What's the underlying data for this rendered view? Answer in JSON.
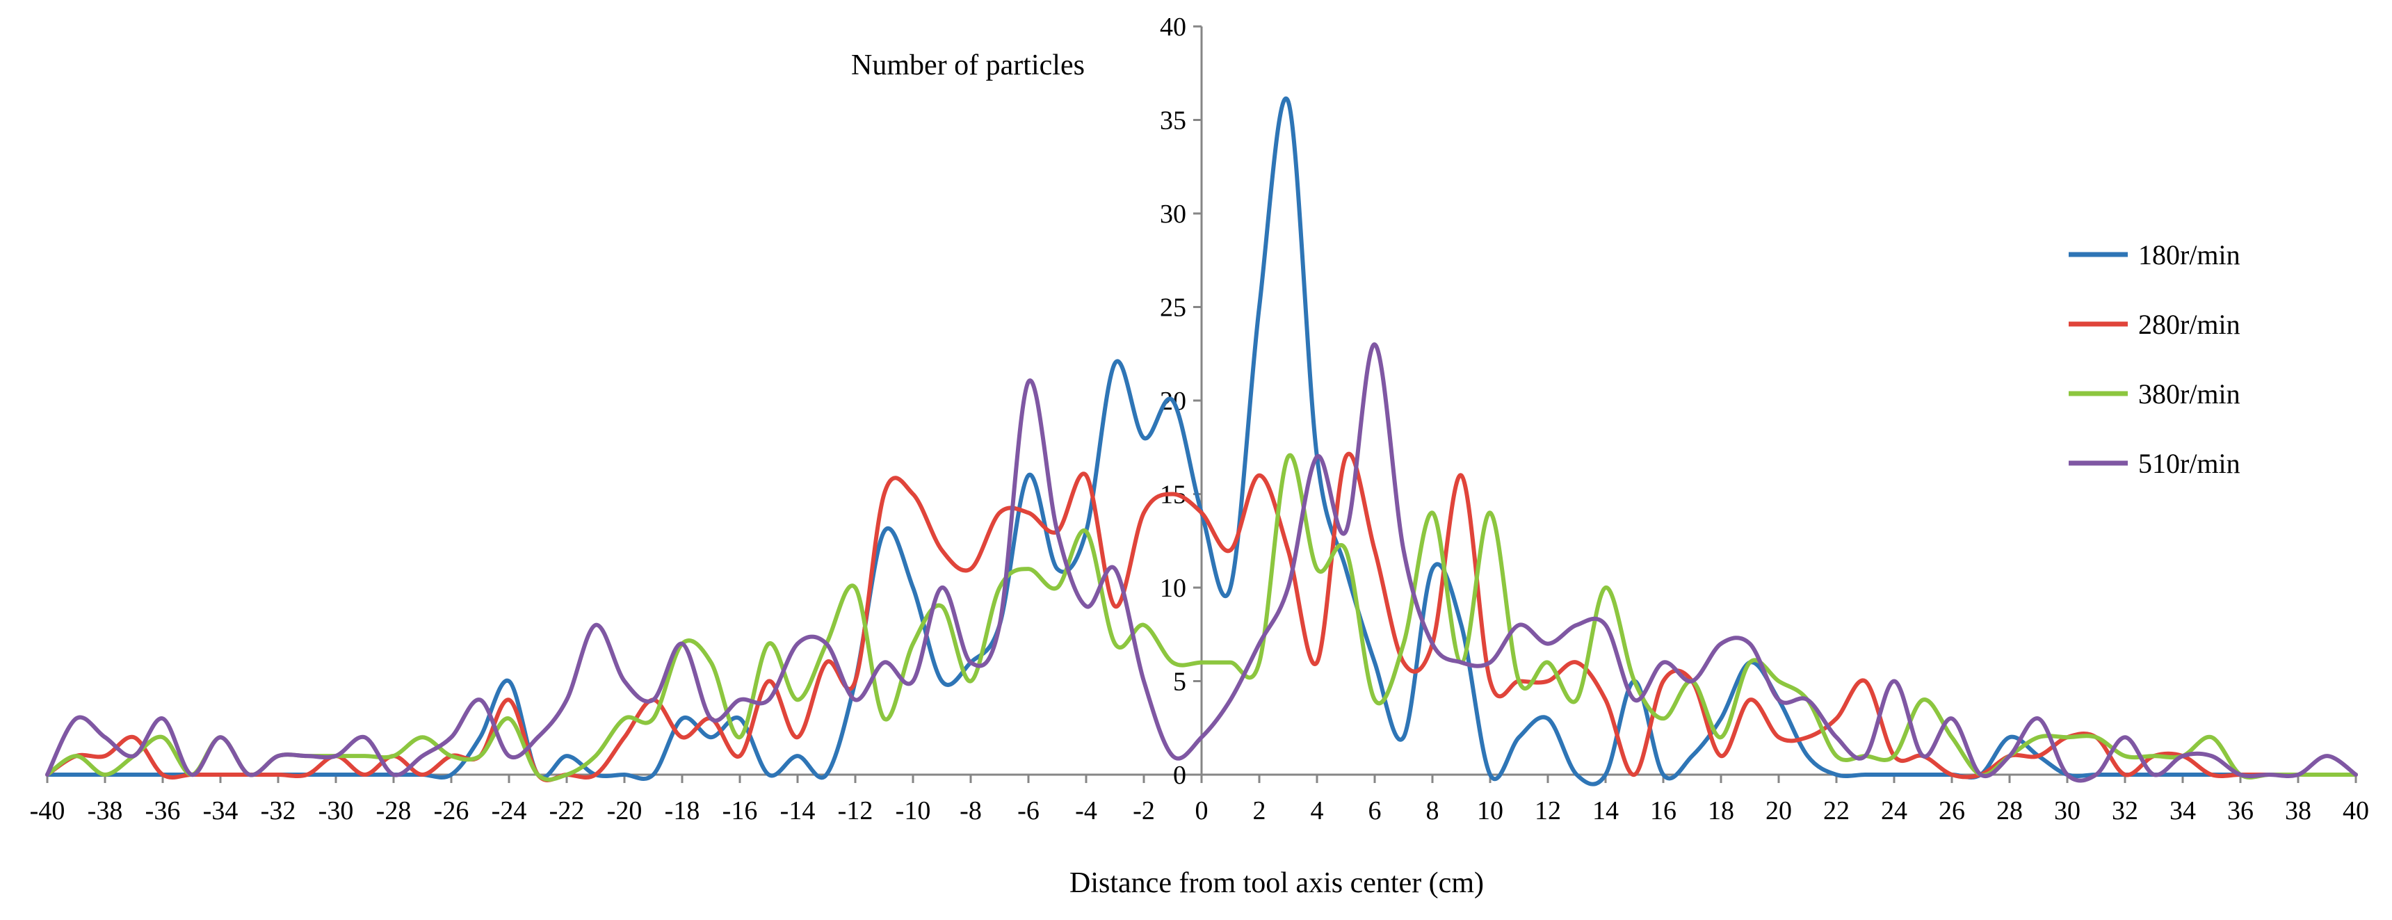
{
  "chart_data": {
    "type": "line",
    "title": "",
    "ylabel": "Number of particles",
    "xlabel": "Distance from tool axis center (cm)",
    "xlim": [
      -40,
      40
    ],
    "ylim": [
      0,
      40
    ],
    "x_ticks": [
      -40,
      -38,
      -36,
      -34,
      -32,
      -30,
      -28,
      -26,
      -24,
      -22,
      -20,
      -18,
      -16,
      -14,
      -12,
      -10,
      -8,
      -6,
      -4,
      -2,
      0,
      2,
      4,
      6,
      8,
      10,
      12,
      14,
      16,
      18,
      20,
      22,
      24,
      26,
      28,
      30,
      32,
      34,
      36,
      38,
      40
    ],
    "y_ticks": [
      0,
      5,
      10,
      15,
      20,
      25,
      30,
      35,
      40
    ],
    "grid": false,
    "legend_position": "right",
    "x": [
      -40,
      -39,
      -38,
      -37,
      -36,
      -35,
      -34,
      -33,
      -32,
      -31,
      -30,
      -29,
      -28,
      -27,
      -26,
      -25,
      -24,
      -23,
      -22,
      -21,
      -20,
      -19,
      -18,
      -17,
      -16,
      -15,
      -14,
      -13,
      -12,
      -11,
      -10,
      -9,
      -8,
      -7,
      -6,
      -5,
      -4,
      -3,
      -2,
      -1,
      0,
      1,
      2,
      3,
      4,
      5,
      6,
      7,
      8,
      9,
      10,
      11,
      12,
      13,
      14,
      15,
      16,
      17,
      18,
      19,
      20,
      21,
      22,
      23,
      24,
      25,
      26,
      27,
      28,
      29,
      30,
      31,
      32,
      33,
      34,
      35,
      36,
      37,
      38,
      39,
      40
    ],
    "series": [
      {
        "name": "180r/min",
        "color": "#2e75b6",
        "values": [
          0,
          0,
          0,
          0,
          0,
          0,
          0,
          0,
          0,
          0,
          0,
          0,
          0,
          0,
          0,
          2,
          5,
          0,
          1,
          0,
          0,
          0,
          3,
          2,
          3,
          0,
          1,
          0,
          5,
          13,
          10,
          5,
          6,
          8,
          16,
          11,
          13,
          22,
          18,
          20,
          14,
          10,
          25,
          36,
          17,
          11,
          6,
          2,
          11,
          8,
          0,
          2,
          3,
          0,
          0,
          5,
          0,
          1,
          3,
          6,
          4,
          1,
          0,
          0,
          0,
          0,
          0,
          0,
          2,
          1,
          0,
          0,
          0,
          0,
          0,
          0,
          0,
          0,
          0,
          0,
          0
        ]
      },
      {
        "name": "280r/min",
        "color": "#e0443a",
        "values": [
          0,
          1,
          1,
          2,
          0,
          0,
          0,
          0,
          0,
          0,
          1,
          0,
          1,
          0,
          1,
          1,
          4,
          0,
          0,
          0,
          2,
          4,
          2,
          3,
          1,
          5,
          2,
          6,
          5,
          15,
          15,
          12,
          11,
          14,
          14,
          13,
          16,
          9,
          14,
          15,
          14,
          12,
          16,
          12,
          6,
          17,
          12,
          6,
          7,
          16,
          5,
          5,
          5,
          6,
          4,
          0,
          5,
          5,
          1,
          4,
          2,
          2,
          3,
          5,
          1,
          1,
          0,
          0,
          1,
          1,
          2,
          2,
          0,
          1,
          1,
          0,
          0,
          0,
          0,
          0,
          0
        ]
      },
      {
        "name": "380r/min",
        "color": "#8cc63f",
        "values": [
          0,
          1,
          0,
          1,
          2,
          0,
          2,
          0,
          1,
          1,
          1,
          1,
          1,
          2,
          1,
          1,
          3,
          0,
          0,
          1,
          3,
          3,
          7,
          6,
          2,
          7,
          4,
          7,
          10,
          3,
          7,
          9,
          5,
          10,
          11,
          10,
          13,
          7,
          8,
          6,
          6,
          6,
          6,
          17,
          11,
          12,
          4,
          7,
          14,
          6,
          14,
          5,
          6,
          4,
          10,
          5,
          3,
          5,
          2,
          6,
          5,
          4,
          1,
          1,
          1,
          4,
          2,
          0,
          1,
          2,
          2,
          2,
          1,
          1,
          1,
          2,
          0,
          0,
          0,
          0,
          0
        ]
      },
      {
        "name": "510r/min",
        "color": "#7f57a3",
        "values": [
          0,
          3,
          2,
          1,
          3,
          0,
          2,
          0,
          1,
          1,
          1,
          2,
          0,
          1,
          2,
          4,
          1,
          2,
          4,
          8,
          5,
          4,
          7,
          3,
          4,
          4,
          7,
          7,
          4,
          6,
          5,
          10,
          6,
          8,
          21,
          13,
          9,
          11,
          5,
          1,
          2,
          4,
          7,
          10,
          17,
          13,
          23,
          12,
          7,
          6,
          6,
          8,
          7,
          8,
          8,
          4,
          6,
          5,
          7,
          7,
          4,
          4,
          2,
          1,
          5,
          1,
          3,
          0,
          1,
          3,
          0,
          0,
          2,
          0,
          1,
          1,
          0,
          0,
          0,
          1,
          0
        ]
      }
    ]
  }
}
